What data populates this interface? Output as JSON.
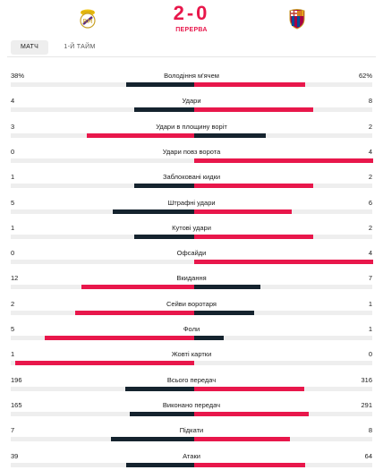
{
  "header": {
    "score": "2-0",
    "status": "ПЕРЕРВА",
    "home_crest_icon": "real-madrid-crest-icon",
    "away_crest_icon": "fc-barcelona-crest-icon"
  },
  "tabs": [
    {
      "label": "МАТЧ",
      "active": true
    },
    {
      "label": "1-Й ТАЙМ",
      "active": false
    }
  ],
  "colors": {
    "accent": "#e8174b",
    "dark": "#15232e",
    "track": "#eeeeee"
  },
  "stats": [
    {
      "label": "Володіння м'ячем",
      "home": "38%",
      "away": "62%",
      "hv": 38,
      "av": 62
    },
    {
      "label": "Удари",
      "home": "4",
      "away": "8",
      "hv": 4,
      "av": 8
    },
    {
      "label": "Удари в площину воріт",
      "home": "3",
      "away": "2",
      "hv": 3,
      "av": 2
    },
    {
      "label": "Удари повз ворота",
      "home": "0",
      "away": "4",
      "hv": 0,
      "av": 4
    },
    {
      "label": "Заблоковані кидки",
      "home": "1",
      "away": "2",
      "hv": 1,
      "av": 2
    },
    {
      "label": "Штрафні удари",
      "home": "5",
      "away": "6",
      "hv": 5,
      "av": 6
    },
    {
      "label": "Кутові удари",
      "home": "1",
      "away": "2",
      "hv": 1,
      "av": 2
    },
    {
      "label": "Офсайди",
      "home": "0",
      "away": "4",
      "hv": 0,
      "av": 4
    },
    {
      "label": "Вкидання",
      "home": "12",
      "away": "7",
      "hv": 12,
      "av": 7
    },
    {
      "label": "Сейви воротаря",
      "home": "2",
      "away": "1",
      "hv": 2,
      "av": 1
    },
    {
      "label": "Фоли",
      "home": "5",
      "away": "1",
      "hv": 5,
      "av": 1
    },
    {
      "label": "Жовті картки",
      "home": "1",
      "away": "0",
      "hv": 1,
      "av": 0
    },
    {
      "label": "Всього передач",
      "home": "196",
      "away": "316",
      "hv": 196,
      "av": 316
    },
    {
      "label": "Виконано передач",
      "home": "165",
      "away": "291",
      "hv": 165,
      "av": 291
    },
    {
      "label": "Підкати",
      "home": "7",
      "away": "8",
      "hv": 7,
      "av": 8
    },
    {
      "label": "Атаки",
      "home": "39",
      "away": "64",
      "hv": 39,
      "av": 64
    }
  ]
}
